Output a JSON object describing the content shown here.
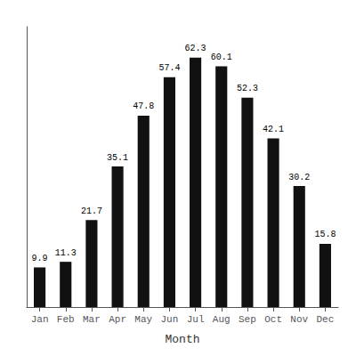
{
  "chart_data": {
    "type": "bar",
    "xlabel": "Month",
    "categories": [
      "Jan",
      "Feb",
      "Mar",
      "Apr",
      "May",
      "Jun",
      "Jul",
      "Aug",
      "Sep",
      "Oct",
      "Nov",
      "Dec"
    ],
    "values": [
      9.9,
      11.3,
      21.7,
      35.1,
      47.8,
      57.4,
      62.3,
      60.1,
      52.3,
      42.1,
      30.2,
      15.8
    ],
    "color": "#111111",
    "ylim": [
      0,
      70
    ],
    "grid": false,
    "data_labels": true,
    "tick_labels": "x"
  }
}
